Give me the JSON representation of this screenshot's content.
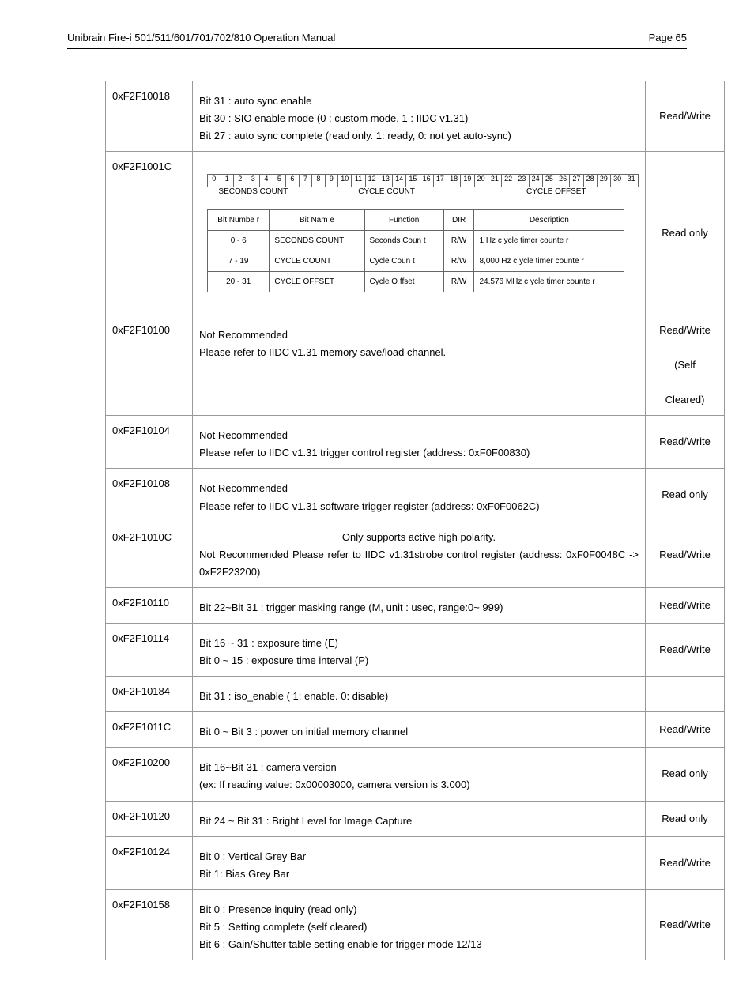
{
  "header": {
    "title": "Unibrain Fire-i 501/511/601/701/702/810 Operation Manual",
    "page_label": "Page 65"
  },
  "bitstrip": {
    "cells": [
      "0",
      "1",
      "2",
      "3",
      "4",
      "5",
      "6",
      "7",
      "8",
      "9",
      "10",
      "11",
      "12",
      "13",
      "14",
      "15",
      "16",
      "17",
      "18",
      "19",
      "20",
      "21",
      "22",
      "23",
      "24",
      "25",
      "26",
      "27",
      "28",
      "29",
      "30",
      "31"
    ],
    "groups": [
      {
        "span": 7,
        "label": "SECONDS COUNT"
      },
      {
        "span": 13,
        "label": "CYCLE COUNT"
      },
      {
        "span": 12,
        "label": "CYCLE OFFSET"
      }
    ]
  },
  "inner_table": {
    "headers": [
      "Bit Numbe r",
      "Bit Nam e",
      "Function",
      "DIR",
      "Description"
    ],
    "rows": [
      [
        "0 - 6",
        "SECONDS COUNT",
        "Seconds Coun t",
        "R/W",
        "1 Hz c ycle timer counte r"
      ],
      [
        "7 - 19",
        "CYCLE COUNT",
        "Cycle Coun t",
        "R/W",
        "8,000 Hz c ycle timer counte r"
      ],
      [
        "20 - 31",
        "CYCLE OFFSET",
        "Cycle O ffset",
        "R/W",
        "24.576 MHz c ycle timer counte r"
      ]
    ]
  },
  "rows": [
    {
      "addr": "0xF2F10018",
      "access": "Read/Write",
      "lines": [
        "Bit 31 : auto sync enable",
        "Bit 30 : SIO enable mode (0 : custom mode, 1 : IIDC v1.31)",
        "Bit 27 : auto sync complete (read only. 1: ready, 0: not yet auto-sync)"
      ]
    },
    {
      "addr": "0xF2F1001C",
      "access": "Read only",
      "special": "bittable"
    },
    {
      "addr": "0xF2F10100",
      "access": "Read/Write (Self Cleared)",
      "lines": [
        "Not Recommended",
        "Please refer to IIDC v1.31 memory save/load channel."
      ]
    },
    {
      "addr": "0xF2F10104",
      "access": "Read/Write",
      "lines": [
        "Not Recommended",
        "Please refer to IIDC v1.31 trigger control register (address: 0xF0F00830)"
      ]
    },
    {
      "addr": "0xF2F10108",
      "access": "Read only",
      "lines": [
        "Not Recommended",
        "Please refer to IIDC v1.31 software trigger register (address: 0xF0F0062C)"
      ]
    },
    {
      "addr": "0xF2F1010C",
      "access": "Read/Write",
      "html": "<div style='text-align:center'>Only supports active high polarity.</div><div class='justify'>Not Recommended Please refer to IIDC v1.31strobe control register (address: 0xF0F0048C -> 0xF2F23200)</div>"
    },
    {
      "addr": "0xF2F10110",
      "access": "Read/Write",
      "lines": [
        "Bit 22~Bit 31 : trigger masking range (M, unit : usec, range:0~ 999)"
      ]
    },
    {
      "addr": "0xF2F10114",
      "access": "Read/Write",
      "lines": [
        "Bit 16 ~ 31 : exposure time (E)",
        "Bit 0 ~ 15 : exposure time interval (P)"
      ]
    },
    {
      "addr": "0xF2F10184",
      "access": "",
      "lines": [
        "Bit 31 : iso_enable ( 1: enable. 0: disable)"
      ]
    },
    {
      "addr": "0xF2F1011C",
      "access": "Read/Write",
      "lines": [
        "Bit 0 ~ Bit 3 : power on initial memory channel"
      ]
    },
    {
      "addr": "0xF2F10200",
      "access": "Read only",
      "lines": [
        "Bit 16~Bit 31 : camera version",
        "(ex: If reading value: 0x00003000, camera version is 3.000)"
      ]
    },
    {
      "addr": "0xF2F10120",
      "access": "Read only",
      "lines": [
        "Bit 24 ~ Bit 31 : Bright Level for Image Capture"
      ]
    },
    {
      "addr": "0xF2F10124",
      "access": "Read/Write",
      "lines": [
        "Bit 0 : Vertical Grey Bar",
        "Bit 1: Bias Grey Bar"
      ]
    },
    {
      "addr": "0xF2F10158",
      "access": "Read/Write",
      "lines": [
        "Bit 0 : Presence inquiry (read only)",
        "Bit 5 : Setting complete (self cleared)",
        "Bit 6 : Gain/Shutter table setting enable for trigger mode 12/13"
      ]
    }
  ]
}
